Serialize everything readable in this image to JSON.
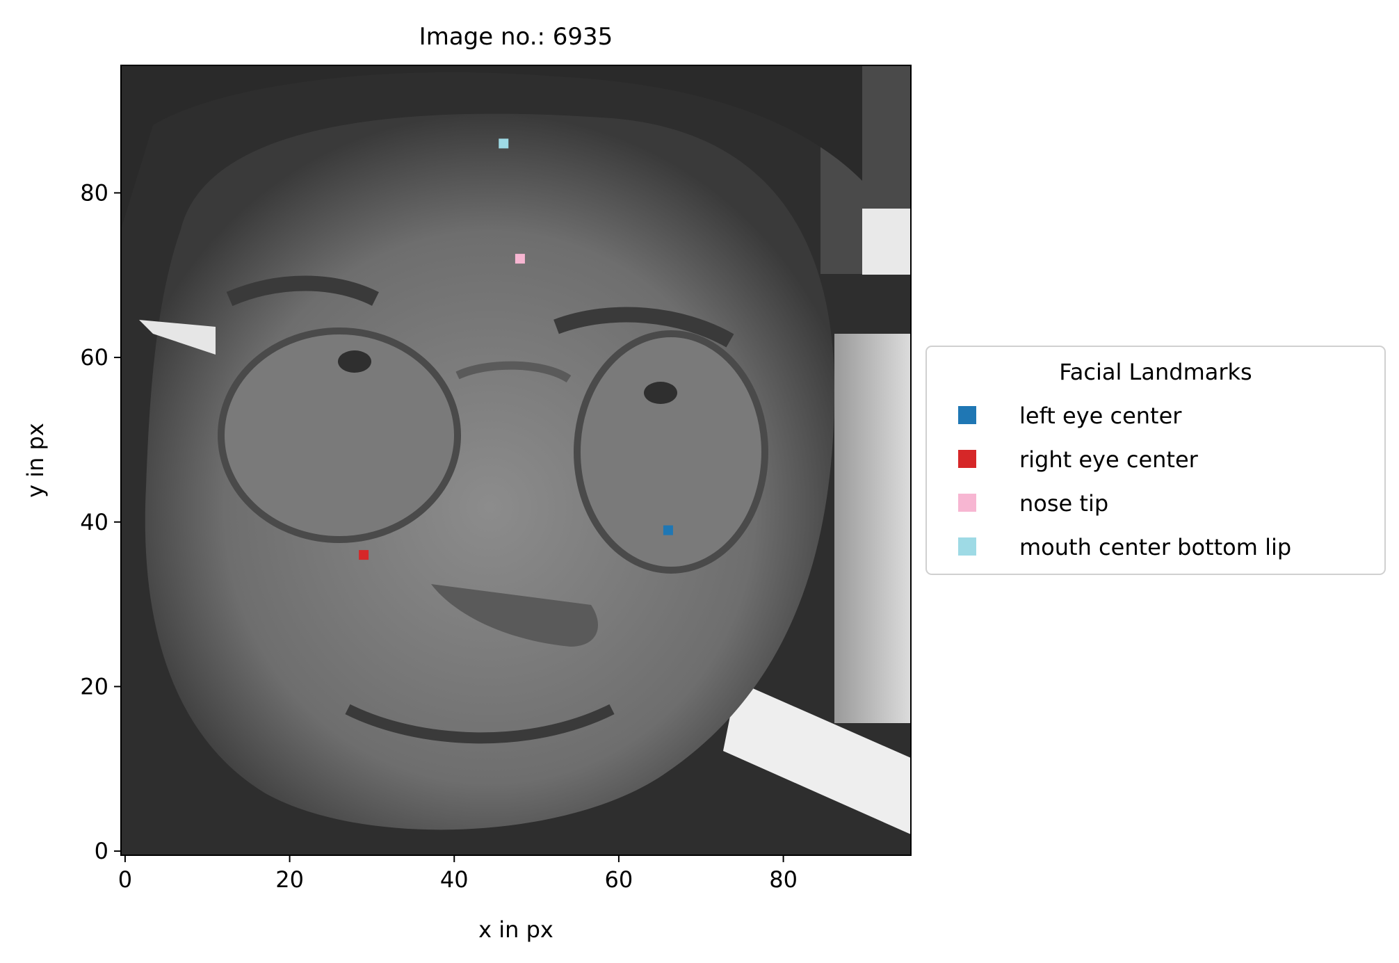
{
  "chart_data": {
    "type": "scatter",
    "title": "Image no.: 6935",
    "xlabel": "x in px",
    "ylabel": "y in px",
    "xlim": [
      -0.5,
      95.5
    ],
    "ylim": [
      95.5,
      -0.5
    ],
    "x_ticks": [
      0,
      20,
      40,
      60,
      80
    ],
    "y_ticks": [
      0,
      20,
      40,
      60,
      80
    ],
    "background": "grayscale face image (96x96 px)",
    "grid": false,
    "legend": {
      "title": "Facial Landmarks",
      "placement": "center-right outside axes"
    },
    "series": [
      {
        "name": "left eye center",
        "color": "#1f77b4",
        "x": [
          66
        ],
        "y": [
          39
        ]
      },
      {
        "name": "right eye center",
        "color": "#d62728",
        "x": [
          29
        ],
        "y": [
          36
        ]
      },
      {
        "name": "nose tip",
        "color": "#f7b6d2",
        "x": [
          48
        ],
        "y": [
          72
        ]
      },
      {
        "name": "mouth center bottom lip",
        "color": "#9edae5",
        "x": [
          46
        ],
        "y": [
          86
        ]
      }
    ]
  }
}
